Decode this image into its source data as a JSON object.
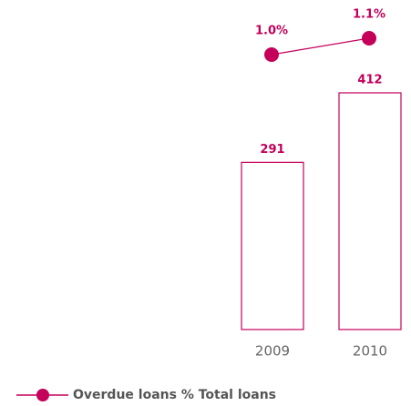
{
  "chart_data": {
    "type": "bar",
    "categories": [
      "2009",
      "2010"
    ],
    "series": [
      {
        "type": "bar",
        "color": "#c4005a",
        "values": [
          291,
          412
        ]
      },
      {
        "type": "line",
        "name": "Overdue loans % Total loans",
        "color": "#c4005a",
        "axis": "y2",
        "values": [
          1.0,
          1.1
        ],
        "value_labels": [
          "1.0%",
          "1.1%"
        ]
      }
    ],
    "ylim": [
      0,
      450
    ],
    "y2lim": [
      0.8,
      1.2
    ]
  }
}
